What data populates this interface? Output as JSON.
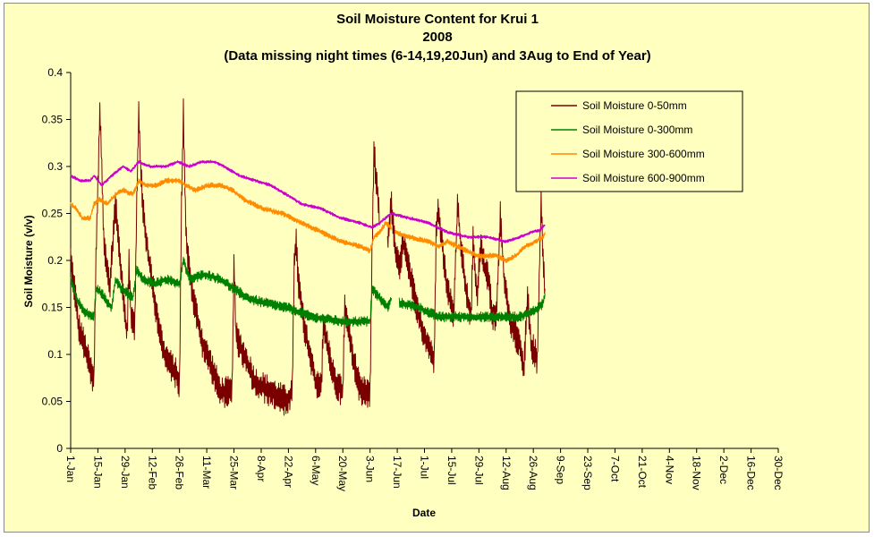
{
  "chart_data": {
    "type": "line",
    "title_lines": [
      "Soil Moisture Content for Krui 1",
      "2008",
      "(Data missing night times (6-14,19,20Jun) and 3Aug to End of Year)"
    ],
    "xlabel": "Date",
    "ylabel": "Soil Moisture (v/v)",
    "ylim": [
      0,
      0.4
    ],
    "yticks": [
      0,
      0.05,
      0.1,
      0.15,
      0.2,
      0.25,
      0.3,
      0.35,
      0.4
    ],
    "ytick_labels": [
      "0",
      "0.05",
      "0.1",
      "0.15",
      "0.2",
      "0.25",
      "0.3",
      "0.35",
      "0.4"
    ],
    "x_unit": "day of year 2008",
    "xlim": [
      1,
      365
    ],
    "xtick_labels": [
      "1-Jan",
      "15-Jan",
      "29-Jan",
      "12-Feb",
      "26-Feb",
      "11-Mar",
      "25-Mar",
      "8-Apr",
      "22-Apr",
      "6-May",
      "20-May",
      "3-Jun",
      "17-Jun",
      "1-Jul",
      "15-Jul",
      "29-Jul",
      "12-Aug",
      "26-Aug",
      "9-Sep",
      "23-Sep",
      "7-Oct",
      "21-Oct",
      "4-Nov",
      "18-Nov",
      "2-Dec",
      "16-Dec",
      "30-Dec"
    ],
    "xtick_values": [
      1,
      15,
      29,
      43,
      57,
      71,
      85,
      99,
      113,
      127,
      141,
      155,
      169,
      183,
      197,
      211,
      225,
      239,
      253,
      267,
      281,
      295,
      309,
      323,
      337,
      351,
      365
    ],
    "grid": false,
    "legend_position": "top-right",
    "series": [
      {
        "name": "Soil Moisture 0-50mm",
        "color": "#7a0000",
        "noise": 0.012,
        "points": [
          [
            1,
            0.2
          ],
          [
            3,
            0.17
          ],
          [
            5,
            0.13
          ],
          [
            8,
            0.11
          ],
          [
            13,
            0.07
          ],
          [
            14,
            0.2
          ],
          [
            16,
            0.36
          ],
          [
            17,
            0.3
          ],
          [
            18,
            0.22
          ],
          [
            20,
            0.19
          ],
          [
            21,
            0.17
          ],
          [
            24,
            0.26
          ],
          [
            27,
            0.19
          ],
          [
            30,
            0.12
          ],
          [
            31,
            0.2
          ],
          [
            32,
            0.14
          ],
          [
            34,
            0.13
          ],
          [
            35,
            0.26
          ],
          [
            36,
            0.36
          ],
          [
            37,
            0.3
          ],
          [
            38,
            0.26
          ],
          [
            40,
            0.22
          ],
          [
            44,
            0.16
          ],
          [
            49,
            0.1
          ],
          [
            55,
            0.08
          ],
          [
            57,
            0.07
          ],
          [
            58,
            0.26
          ],
          [
            59,
            0.36
          ],
          [
            60,
            0.25
          ],
          [
            61,
            0.21
          ],
          [
            64,
            0.16
          ],
          [
            69,
            0.11
          ],
          [
            73,
            0.09
          ],
          [
            78,
            0.06
          ],
          [
            84,
            0.06
          ],
          [
            85,
            0.2
          ],
          [
            86,
            0.12
          ],
          [
            90,
            0.1
          ],
          [
            96,
            0.07
          ],
          [
            104,
            0.06
          ],
          [
            112,
            0.05
          ],
          [
            115,
            0.06
          ],
          [
            116,
            0.2
          ],
          [
            117,
            0.22
          ],
          [
            118,
            0.18
          ],
          [
            121,
            0.13
          ],
          [
            124,
            0.1
          ],
          [
            127,
            0.07
          ],
          [
            130,
            0.07
          ],
          [
            131,
            0.13
          ],
          [
            134,
            0.1
          ],
          [
            137,
            0.07
          ],
          [
            141,
            0.06
          ],
          [
            142,
            0.15
          ],
          [
            146,
            0.1
          ],
          [
            150,
            0.06
          ],
          [
            155,
            0.06
          ],
          [
            156,
            0.2
          ],
          [
            157,
            0.32
          ],
          [
            158,
            0.29
          ],
          [
            159,
            0.27
          ],
          [
            160,
            0.24
          ]
        ],
        "segments": [
          [
            [
              164,
              0.22
            ],
            [
              166,
              0.26
            ],
            [
              168,
              0.21
            ],
            [
              170,
              0.19
            ],
            [
              172,
              0.22
            ],
            [
              174,
              0.2
            ],
            [
              176,
              0.18
            ],
            [
              178,
              0.16
            ],
            [
              180,
              0.14
            ],
            [
              183,
              0.12
            ],
            [
              187,
              0.1
            ],
            [
              188,
              0.09
            ],
            [
              189,
              0.23
            ],
            [
              190,
              0.26
            ],
            [
              192,
              0.22
            ],
            [
              194,
              0.18
            ],
            [
              196,
              0.16
            ],
            [
              198,
              0.14
            ],
            [
              200,
              0.26
            ],
            [
              202,
              0.21
            ],
            [
              205,
              0.16
            ],
            [
              207,
              0.14
            ],
            [
              208,
              0.22
            ],
            [
              210,
              0.16
            ],
            [
              212,
              0.22
            ],
            [
              214,
              0.19
            ],
            [
              216,
              0.18
            ],
            [
              218,
              0.14
            ],
            [
              220,
              0.14
            ],
            [
              222,
              0.25
            ],
            [
              224,
              0.18
            ],
            [
              226,
              0.15
            ],
            [
              228,
              0.13
            ],
            [
              232,
              0.11
            ],
            [
              234,
              0.08
            ],
            [
              236,
              0.16
            ],
            [
              238,
              0.11
            ],
            [
              240,
              0.1
            ],
            [
              241,
              0.09
            ],
            [
              242,
              0.18
            ],
            [
              243,
              0.27
            ],
            [
              244,
              0.2
            ],
            [
              245,
              0.17
            ]
          ]
        ]
      },
      {
        "name": "Soil Moisture 0-300mm",
        "color": "#008000",
        "noise": 0.004,
        "points": [
          [
            1,
            0.18
          ],
          [
            4,
            0.16
          ],
          [
            8,
            0.145
          ],
          [
            13,
            0.14
          ],
          [
            14,
            0.17
          ],
          [
            17,
            0.165
          ],
          [
            20,
            0.155
          ],
          [
            22,
            0.15
          ],
          [
            24,
            0.18
          ],
          [
            27,
            0.17
          ],
          [
            30,
            0.165
          ],
          [
            33,
            0.16
          ],
          [
            35,
            0.19
          ],
          [
            38,
            0.18
          ],
          [
            44,
            0.175
          ],
          [
            50,
            0.18
          ],
          [
            57,
            0.175
          ],
          [
            59,
            0.2
          ],
          [
            62,
            0.18
          ],
          [
            70,
            0.185
          ],
          [
            78,
            0.18
          ],
          [
            85,
            0.17
          ],
          [
            92,
            0.16
          ],
          [
            100,
            0.155
          ],
          [
            112,
            0.15
          ],
          [
            125,
            0.14
          ],
          [
            140,
            0.135
          ],
          [
            150,
            0.135
          ],
          [
            155,
            0.135
          ],
          [
            156,
            0.17
          ],
          [
            160,
            0.16
          ],
          [
            164,
            0.15
          ],
          [
            166,
            0.16
          ]
        ],
        "segments": [
          [
            [
              170,
              0.155
            ],
            [
              180,
              0.15
            ],
            [
              190,
              0.14
            ],
            [
              200,
              0.14
            ],
            [
              210,
              0.14
            ],
            [
              220,
              0.14
            ],
            [
              225,
              0.14
            ],
            [
              232,
              0.14
            ],
            [
              238,
              0.145
            ],
            [
              242,
              0.15
            ],
            [
              244,
              0.155
            ],
            [
              245,
              0.165
            ]
          ]
        ]
      },
      {
        "name": "Soil Moisture 300-600mm",
        "color": "#ff8c00",
        "noise": 0.002,
        "points": [
          [
            1,
            0.26
          ],
          [
            4,
            0.255
          ],
          [
            7,
            0.245
          ],
          [
            11,
            0.245
          ],
          [
            13,
            0.26
          ],
          [
            16,
            0.265
          ],
          [
            20,
            0.26
          ],
          [
            24,
            0.27
          ],
          [
            28,
            0.275
          ],
          [
            33,
            0.27
          ],
          [
            36,
            0.285
          ],
          [
            40,
            0.28
          ],
          [
            45,
            0.28
          ],
          [
            50,
            0.285
          ],
          [
            57,
            0.285
          ],
          [
            60,
            0.28
          ],
          [
            65,
            0.275
          ],
          [
            72,
            0.28
          ],
          [
            78,
            0.28
          ],
          [
            84,
            0.275
          ],
          [
            90,
            0.265
          ],
          [
            100,
            0.255
          ],
          [
            110,
            0.25
          ],
          [
            120,
            0.24
          ],
          [
            130,
            0.23
          ],
          [
            140,
            0.22
          ],
          [
            150,
            0.215
          ],
          [
            155,
            0.21
          ],
          [
            157,
            0.225
          ],
          [
            160,
            0.23
          ],
          [
            163,
            0.24
          ],
          [
            166,
            0.235
          ]
        ],
        "segments": [
          [
            [
              168,
              0.23
            ],
            [
              175,
              0.225
            ],
            [
              185,
              0.22
            ],
            [
              190,
              0.215
            ],
            [
              195,
              0.22
            ],
            [
              200,
              0.215
            ],
            [
              205,
              0.21
            ],
            [
              210,
              0.205
            ],
            [
              215,
              0.205
            ],
            [
              220,
              0.205
            ],
            [
              225,
              0.2
            ],
            [
              230,
              0.205
            ],
            [
              235,
              0.215
            ],
            [
              240,
              0.22
            ],
            [
              244,
              0.225
            ],
            [
              245,
              0.23
            ]
          ]
        ]
      },
      {
        "name": "Soil Moisture 600-900mm",
        "color": "#cc00cc",
        "noise": 0.0012,
        "points": [
          [
            1,
            0.29
          ],
          [
            6,
            0.285
          ],
          [
            11,
            0.285
          ],
          [
            13,
            0.29
          ],
          [
            17,
            0.28
          ],
          [
            22,
            0.29
          ],
          [
            28,
            0.3
          ],
          [
            32,
            0.295
          ],
          [
            36,
            0.305
          ],
          [
            42,
            0.3
          ],
          [
            50,
            0.3
          ],
          [
            56,
            0.305
          ],
          [
            62,
            0.3
          ],
          [
            68,
            0.305
          ],
          [
            75,
            0.305
          ],
          [
            80,
            0.3
          ],
          [
            88,
            0.29
          ],
          [
            96,
            0.285
          ],
          [
            104,
            0.28
          ],
          [
            112,
            0.27
          ],
          [
            120,
            0.26
          ],
          [
            130,
            0.255
          ],
          [
            140,
            0.245
          ],
          [
            150,
            0.24
          ],
          [
            156,
            0.235
          ],
          [
            160,
            0.24
          ],
          [
            166,
            0.25
          ]
        ],
        "segments": [
          [
            [
              166,
              0.25
            ],
            [
              175,
              0.245
            ],
            [
              185,
              0.24
            ],
            [
              195,
              0.23
            ],
            [
              205,
              0.225
            ],
            [
              215,
              0.225
            ],
            [
              225,
              0.22
            ],
            [
              232,
              0.225
            ],
            [
              238,
              0.23
            ],
            [
              242,
              0.232
            ],
            [
              245,
              0.238
            ]
          ]
        ]
      }
    ]
  }
}
